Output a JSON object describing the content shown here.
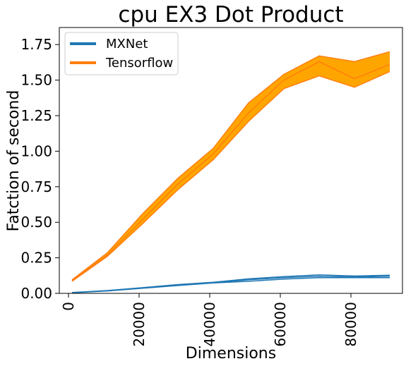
{
  "chart_data": {
    "type": "line",
    "title": "cpu EX3 Dot Product",
    "xlabel": "Dimensions",
    "ylabel": "Fatction of second",
    "xlim": [
      -2600,
      94600
    ],
    "ylim": [
      0.0,
      1.87
    ],
    "x_ticks": [
      0,
      20000,
      40000,
      60000,
      80000
    ],
    "x_tick_labels": [
      "0",
      "20000",
      "40000",
      "60000",
      "80000"
    ],
    "y_ticks": [
      0.0,
      0.25,
      0.5,
      0.75,
      1.0,
      1.25,
      1.5,
      1.75
    ],
    "y_tick_labels": [
      "0.00",
      "0.25",
      "0.50",
      "0.75",
      "1.00",
      "1.25",
      "1.50",
      "1.75"
    ],
    "grid": false,
    "legend_position": "top-left",
    "x": [
      1000,
      11000,
      21000,
      31000,
      41000,
      51000,
      61000,
      71000,
      81000,
      91000
    ],
    "series": [
      {
        "name": "MXNet",
        "color": "#1f77b4",
        "values": [
          0.005,
          0.018,
          0.038,
          0.058,
          0.075,
          0.095,
          0.11,
          0.12,
          0.115,
          0.12
        ],
        "lower": [
          0.004,
          0.017,
          0.036,
          0.055,
          0.073,
          0.085,
          0.1,
          0.11,
          0.11,
          0.11
        ],
        "upper": [
          0.006,
          0.02,
          0.04,
          0.062,
          0.078,
          0.102,
          0.118,
          0.13,
          0.122,
          0.128
        ]
      },
      {
        "name": "Tensorflow",
        "color": "#ff7f0e",
        "fill_color": "#ffa500",
        "values": [
          0.09,
          0.27,
          0.52,
          0.77,
          0.98,
          1.27,
          1.5,
          1.63,
          1.51,
          1.61
        ],
        "lower": [
          0.085,
          0.26,
          0.49,
          0.73,
          0.94,
          1.21,
          1.44,
          1.53,
          1.45,
          1.56
        ],
        "upper": [
          0.095,
          0.285,
          0.56,
          0.81,
          1.02,
          1.34,
          1.54,
          1.67,
          1.63,
          1.7
        ]
      }
    ]
  }
}
